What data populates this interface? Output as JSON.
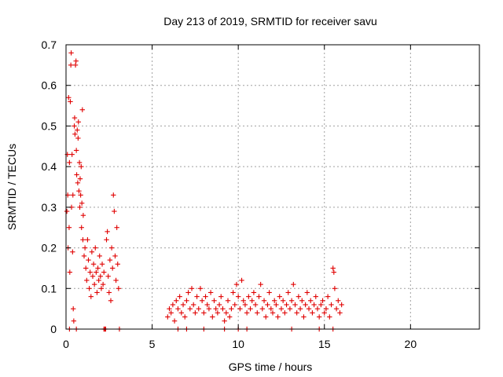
{
  "chart_data": {
    "type": "scatter",
    "title": "Day 213 of 2019, SRMTID for receiver savu",
    "xlabel": "GPS time / hours",
    "ylabel": "SRMTID / TECUs",
    "xlim": [
      0,
      24
    ],
    "ylim": [
      0,
      0.7
    ],
    "xticks": [
      0,
      5,
      10,
      15,
      20
    ],
    "yticks": [
      0,
      0.1,
      0.2,
      0.3,
      0.4,
      0.5,
      0.6,
      0.7
    ],
    "xtick_labels": [
      "0",
      "5",
      "10",
      "15",
      "20"
    ],
    "ytick_labels": [
      "0",
      "0.1",
      "0.2",
      "0.3",
      "0.4",
      "0.5",
      "0.6",
      "0.7"
    ],
    "grid": true,
    "marker": "+",
    "color": "#e00000",
    "series": [
      {
        "name": "SRMTID",
        "points": [
          [
            0.05,
            0.29
          ],
          [
            0.08,
            0.43
          ],
          [
            0.1,
            0.33
          ],
          [
            0.12,
            0.2
          ],
          [
            0.15,
            0.57
          ],
          [
            0.18,
            0.25
          ],
          [
            0.2,
            0.41
          ],
          [
            0.22,
            0.14
          ],
          [
            0.25,
            0.56
          ],
          [
            0.28,
            0.65
          ],
          [
            0.3,
            0.68
          ],
          [
            0.32,
            0.3
          ],
          [
            0.35,
            0.43
          ],
          [
            0.38,
            0.19
          ],
          [
            0.4,
            0.33
          ],
          [
            0.42,
            0.05
          ],
          [
            0.45,
            0.02
          ],
          [
            0.48,
            0.5
          ],
          [
            0.5,
            0.52
          ],
          [
            0.52,
            0.48
          ],
          [
            0.55,
            0.65
          ],
          [
            0.58,
            0.66
          ],
          [
            0.6,
            0.44
          ],
          [
            0.62,
            0.38
          ],
          [
            0.65,
            0.49
          ],
          [
            0.68,
            0.36
          ],
          [
            0.7,
            0.47
          ],
          [
            0.72,
            0.51
          ],
          [
            0.75,
            0.34
          ],
          [
            0.78,
            0.41
          ],
          [
            0.8,
            0.3
          ],
          [
            0.82,
            0.37
          ],
          [
            0.85,
            0.33
          ],
          [
            0.88,
            0.4
          ],
          [
            0.9,
            0.25
          ],
          [
            0.92,
            0.31
          ],
          [
            0.95,
            0.54
          ],
          [
            0.98,
            0.22
          ],
          [
            1.0,
            0.28
          ],
          [
            1.05,
            0.18
          ],
          [
            1.1,
            0.2
          ],
          [
            1.15,
            0.15
          ],
          [
            1.2,
            0.12
          ],
          [
            1.25,
            0.22
          ],
          [
            1.3,
            0.17
          ],
          [
            1.35,
            0.1
          ],
          [
            1.4,
            0.14
          ],
          [
            1.45,
            0.08
          ],
          [
            1.5,
            0.19
          ],
          [
            1.55,
            0.13
          ],
          [
            1.6,
            0.16
          ],
          [
            1.65,
            0.11
          ],
          [
            1.7,
            0.2
          ],
          [
            1.75,
            0.14
          ],
          [
            1.8,
            0.09
          ],
          [
            1.85,
            0.15
          ],
          [
            1.9,
            0.12
          ],
          [
            1.95,
            0.18
          ],
          [
            2.0,
            0.13
          ],
          [
            2.05,
            0.1
          ],
          [
            2.1,
            0.16
          ],
          [
            2.15,
            0.11
          ],
          [
            2.2,
            0.14
          ],
          [
            2.25,
            0.0
          ],
          [
            2.3,
            0.0
          ],
          [
            2.35,
            0.22
          ],
          [
            2.4,
            0.24
          ],
          [
            2.45,
            0.13
          ],
          [
            2.5,
            0.09
          ],
          [
            2.55,
            0.17
          ],
          [
            2.6,
            0.07
          ],
          [
            2.65,
            0.2
          ],
          [
            2.7,
            0.15
          ],
          [
            2.75,
            0.33
          ],
          [
            2.8,
            0.29
          ],
          [
            2.85,
            0.18
          ],
          [
            2.9,
            0.12
          ],
          [
            2.95,
            0.25
          ],
          [
            3.0,
            0.16
          ],
          [
            3.05,
            0.1
          ],
          [
            0.2,
            0.0
          ],
          [
            0.6,
            0.0
          ],
          [
            2.2,
            0.0
          ],
          [
            3.1,
            0.0
          ],
          [
            5.9,
            0.03
          ],
          [
            6.0,
            0.05
          ],
          [
            6.1,
            0.04
          ],
          [
            6.2,
            0.06
          ],
          [
            6.3,
            0.02
          ],
          [
            6.4,
            0.07
          ],
          [
            6.5,
            0.05
          ],
          [
            6.6,
            0.08
          ],
          [
            6.7,
            0.04
          ],
          [
            6.8,
            0.06
          ],
          [
            6.9,
            0.03
          ],
          [
            7.0,
            0.07
          ],
          [
            7.1,
            0.09
          ],
          [
            7.2,
            0.05
          ],
          [
            7.3,
            0.1
          ],
          [
            7.4,
            0.06
          ],
          [
            7.5,
            0.04
          ],
          [
            7.6,
            0.08
          ],
          [
            7.7,
            0.05
          ],
          [
            7.8,
            0.1
          ],
          [
            7.9,
            0.07
          ],
          [
            8.0,
            0.04
          ],
          [
            8.1,
            0.08
          ],
          [
            8.2,
            0.06
          ],
          [
            8.3,
            0.05
          ],
          [
            8.4,
            0.09
          ],
          [
            8.5,
            0.03
          ],
          [
            8.6,
            0.07
          ],
          [
            8.7,
            0.05
          ],
          [
            8.8,
            0.04
          ],
          [
            8.9,
            0.06
          ],
          [
            9.0,
            0.08
          ],
          [
            9.1,
            0.05
          ],
          [
            9.2,
            0.02
          ],
          [
            9.3,
            0.04
          ],
          [
            9.4,
            0.07
          ],
          [
            9.5,
            0.03
          ],
          [
            9.6,
            0.05
          ],
          [
            9.7,
            0.09
          ],
          [
            9.8,
            0.06
          ],
          [
            9.9,
            0.11
          ],
          [
            10.0,
            0.08
          ],
          [
            10.1,
            0.05
          ],
          [
            10.2,
            0.12
          ],
          [
            10.3,
            0.07
          ],
          [
            10.4,
            0.06
          ],
          [
            10.5,
            0.04
          ],
          [
            10.6,
            0.08
          ],
          [
            10.7,
            0.05
          ],
          [
            10.8,
            0.07
          ],
          [
            10.9,
            0.09
          ],
          [
            11.0,
            0.06
          ],
          [
            11.1,
            0.04
          ],
          [
            11.2,
            0.08
          ],
          [
            11.3,
            0.11
          ],
          [
            11.4,
            0.05
          ],
          [
            11.5,
            0.07
          ],
          [
            11.6,
            0.03
          ],
          [
            11.7,
            0.06
          ],
          [
            11.8,
            0.09
          ],
          [
            11.9,
            0.05
          ],
          [
            12.0,
            0.04
          ],
          [
            12.1,
            0.07
          ],
          [
            12.2,
            0.06
          ],
          [
            12.3,
            0.03
          ],
          [
            12.4,
            0.08
          ],
          [
            12.5,
            0.05
          ],
          [
            12.6,
            0.07
          ],
          [
            12.7,
            0.04
          ],
          [
            12.8,
            0.06
          ],
          [
            12.9,
            0.09
          ],
          [
            13.0,
            0.05
          ],
          [
            13.1,
            0.07
          ],
          [
            13.2,
            0.11
          ],
          [
            13.3,
            0.06
          ],
          [
            13.4,
            0.04
          ],
          [
            13.5,
            0.08
          ],
          [
            13.6,
            0.05
          ],
          [
            13.7,
            0.07
          ],
          [
            13.8,
            0.03
          ],
          [
            13.9,
            0.06
          ],
          [
            14.0,
            0.09
          ],
          [
            14.1,
            0.05
          ],
          [
            14.2,
            0.07
          ],
          [
            14.3,
            0.04
          ],
          [
            14.4,
            0.06
          ],
          [
            14.5,
            0.08
          ],
          [
            14.6,
            0.05
          ],
          [
            14.7,
            0.03
          ],
          [
            14.8,
            0.06
          ],
          [
            14.9,
            0.07
          ],
          [
            15.0,
            0.04
          ],
          [
            15.1,
            0.05
          ],
          [
            15.2,
            0.08
          ],
          [
            15.3,
            0.03
          ],
          [
            15.4,
            0.06
          ],
          [
            15.5,
            0.15
          ],
          [
            15.55,
            0.14
          ],
          [
            15.6,
            0.1
          ],
          [
            15.7,
            0.05
          ],
          [
            15.8,
            0.07
          ],
          [
            15.9,
            0.04
          ],
          [
            16.0,
            0.06
          ],
          [
            6.5,
            0.0
          ],
          [
            7.0,
            0.0
          ],
          [
            8.0,
            0.0
          ],
          [
            9.2,
            0.0
          ],
          [
            10.0,
            0.0
          ],
          [
            10.5,
            0.0
          ],
          [
            13.1,
            0.0
          ],
          [
            14.7,
            0.0
          ],
          [
            15.5,
            0.0
          ]
        ]
      }
    ]
  }
}
